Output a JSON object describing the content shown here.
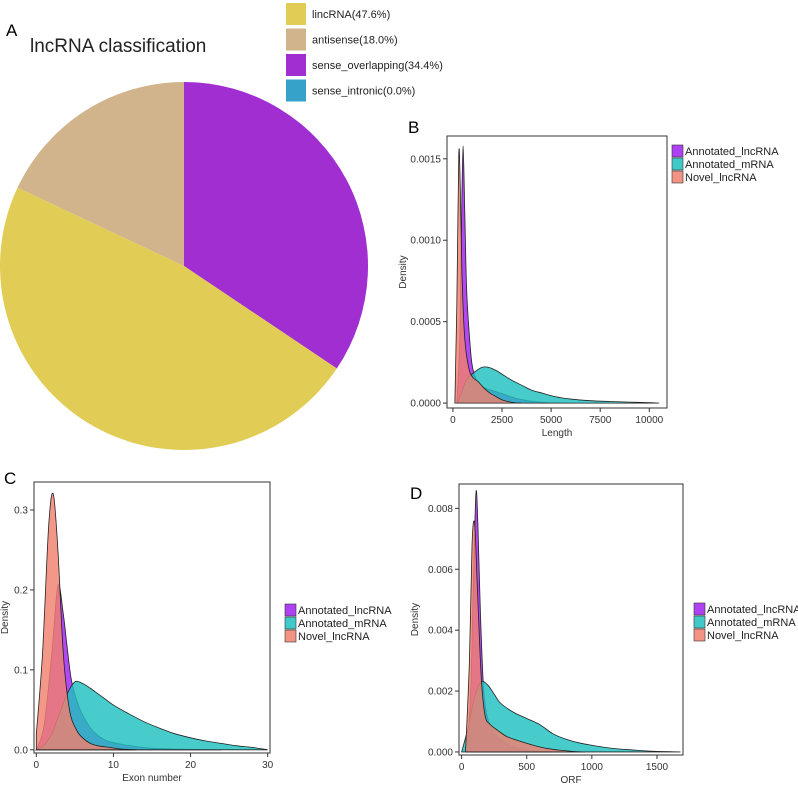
{
  "panels": {
    "a": {
      "letter": "A",
      "chart_data": {
        "type": "pie",
        "title": "lncRNA classification",
        "legend_position": "top-right",
        "slices": [
          {
            "label": "lincRNA(47.6%)",
            "value": 47.6,
            "color": "#e1cd56"
          },
          {
            "label": "antisense(18.0%)",
            "value": 18.0,
            "color": "#d2b48c"
          },
          {
            "label": "sense_overlapping(34.4%)",
            "value": 34.4,
            "color": "#a02ed0"
          },
          {
            "label": "sense_intronic(0.0%)",
            "value": 0.0,
            "color": "#36a2c9"
          }
        ]
      }
    },
    "b": {
      "letter": "B",
      "chart_data": {
        "type": "area",
        "xlabel": "Length",
        "ylabel": "Density",
        "xlim": [
          -300,
          10900
        ],
        "ylim": [
          -3e-05,
          0.00164
        ],
        "xticks": [
          {
            "value": 0,
            "label": "0"
          },
          {
            "value": 2500,
            "label": "2500"
          },
          {
            "value": 5000,
            "label": "5000"
          },
          {
            "value": 7500,
            "label": "7500"
          },
          {
            "value": 10000,
            "label": "10000"
          }
        ],
        "yticks": [
          {
            "value": 0,
            "label": "0.0000"
          },
          {
            "value": 0.0005,
            "label": "0.0005"
          },
          {
            "value": 0.001,
            "label": "0.0010"
          },
          {
            "value": 0.0015,
            "label": "0.0015"
          }
        ],
        "series": [
          {
            "name": "Annotated_lncRNA",
            "color": "#a020f0",
            "x": [
              200,
              350,
              450,
              520,
              600,
              700,
              850,
              1000,
              1300,
              1700,
              2200,
              2700,
              3200,
              3800,
              4500,
              5300,
              6000
            ],
            "y": [
              0,
              0.0004,
              0.0012,
              0.00158,
              0.0012,
              0.0007,
              0.0004,
              0.00022,
              0.00012,
              9e-05,
              7e-05,
              5e-05,
              3e-05,
              1.5e-05,
              5e-06,
              1e-06,
              0
            ]
          },
          {
            "name": "Annotated_mRNA",
            "color": "#20c0c0",
            "x": [
              200,
              400,
              600,
              800,
              1000,
              1200,
              1500,
              1800,
              2200,
              2600,
              3000,
              3500,
              4000,
              4600,
              5200,
              6000,
              7000,
              8000,
              9000,
              10000,
              10500
            ],
            "y": [
              0,
              5e-05,
              0.00012,
              0.00016,
              0.00018,
              0.0002,
              0.00022,
              0.00022,
              0.0002,
              0.00017,
              0.00014,
              0.00011,
              8e-05,
              6e-05,
              4e-05,
              2.5e-05,
              1.5e-05,
              1e-05,
              6e-06,
              3e-06,
              0
            ]
          },
          {
            "name": "Novel_lncRNA",
            "color": "#f0806f",
            "x": [
              100,
              200,
              300,
              380,
              460,
              600,
              800,
              1000,
              1300,
              1600,
              1900,
              2200,
              2500,
              2800,
              3100,
              3500
            ],
            "y": [
              0,
              0.0006,
              0.00153,
              0.0013,
              0.0008,
              0.0004,
              0.00022,
              0.00016,
              0.00013,
              9e-05,
              6e-05,
              4e-05,
              2e-05,
              1e-05,
              3e-06,
              0
            ]
          }
        ]
      }
    },
    "c": {
      "letter": "C",
      "chart_data": {
        "type": "area",
        "xlabel": "Exon number",
        "ylabel": "Density",
        "xlim": [
          -0.3,
          30.3
        ],
        "ylim": [
          -0.004,
          0.335
        ],
        "xticks": [
          {
            "value": 0,
            "label": "0"
          },
          {
            "value": 10,
            "label": "10"
          },
          {
            "value": 20,
            "label": "20"
          },
          {
            "value": 30,
            "label": "30"
          }
        ],
        "yticks": [
          {
            "value": 0,
            "label": "0.0"
          },
          {
            "value": 0.1,
            "label": "0.1"
          },
          {
            "value": 0.2,
            "label": "0.2"
          },
          {
            "value": 0.3,
            "label": "0.3"
          }
        ],
        "series": [
          {
            "name": "Annotated_lncRNA",
            "color": "#a020f0",
            "x": [
              0,
              1,
              2,
              2.8,
              3.5,
              4.5,
              5.5,
              6.5,
              7.5,
              9,
              11,
              13,
              15,
              18,
              21,
              24
            ],
            "y": [
              0,
              0.03,
              0.12,
              0.205,
              0.17,
              0.09,
              0.055,
              0.035,
              0.022,
              0.012,
              0.007,
              0.004,
              0.002,
              0.001,
              0.0004,
              0
            ]
          },
          {
            "name": "Annotated_mRNA",
            "color": "#20c0c0",
            "x": [
              0,
              1,
              2,
              3,
              4,
              5,
              6,
              7,
              8,
              9,
              10,
              12,
              14,
              16,
              18,
              20,
              22,
              24,
              26,
              28,
              30
            ],
            "y": [
              0,
              0.006,
              0.02,
              0.045,
              0.07,
              0.085,
              0.083,
              0.077,
              0.07,
              0.063,
              0.056,
              0.045,
              0.035,
              0.027,
              0.02,
              0.015,
              0.011,
              0.008,
              0.005,
              0.003,
              0
            ]
          },
          {
            "name": "Novel_lncRNA",
            "color": "#f0806f",
            "x": [
              0,
              0.8,
              1.6,
              2.2,
              2.8,
              3.5,
              4.3,
              5.2,
              6,
              7,
              8,
              9.5,
              11,
              13
            ],
            "y": [
              0.02,
              0.12,
              0.28,
              0.32,
              0.25,
              0.12,
              0.05,
              0.025,
              0.015,
              0.008,
              0.005,
              0.003,
              0.001,
              0
            ]
          }
        ]
      }
    },
    "d": {
      "letter": "D",
      "chart_data": {
        "type": "area",
        "xlabel": "ORF",
        "ylabel": "Density",
        "xlim": [
          -20,
          1700
        ],
        "ylim": [
          -0.0001,
          0.0088
        ],
        "xticks": [
          {
            "value": 0,
            "label": "0"
          },
          {
            "value": 500,
            "label": "500"
          },
          {
            "value": 1000,
            "label": "1000"
          },
          {
            "value": 1500,
            "label": "1500"
          }
        ],
        "yticks": [
          {
            "value": 0,
            "label": "0.000"
          },
          {
            "value": 0.002,
            "label": "0.002"
          },
          {
            "value": 0.004,
            "label": "0.004"
          },
          {
            "value": 0.006,
            "label": "0.006"
          },
          {
            "value": 0.008,
            "label": "0.008"
          }
        ],
        "series": [
          {
            "name": "Annotated_lncRNA",
            "color": "#a020f0",
            "x": [
              40,
              70,
              90,
              110,
              125,
              145,
              170,
              200,
              240,
              300,
              380,
              480,
              600,
              750
            ],
            "y": [
              0,
              0.002,
              0.0055,
              0.0085,
              0.0075,
              0.0045,
              0.002,
              0.0011,
              0.0007,
              0.0004,
              0.0002,
              8e-05,
              2e-05,
              0
            ]
          },
          {
            "name": "Annotated_mRNA",
            "color": "#20c0c0",
            "x": [
              0,
              50,
              100,
              150,
              200,
              250,
              300,
              400,
              500,
              600,
              700,
              800,
              900,
              1000,
              1100,
              1200,
              1300,
              1400,
              1500,
              1600,
              1680
            ],
            "y": [
              0,
              0.0008,
              0.0018,
              0.0023,
              0.0022,
              0.0019,
              0.0016,
              0.0013,
              0.0011,
              0.0009,
              0.0006,
              0.00042,
              0.0003,
              0.00022,
              0.00015,
              0.0001,
              7e-05,
              4e-05,
              2e-05,
              8e-06,
              0
            ]
          },
          {
            "name": "Novel_lncRNA",
            "color": "#f0806f",
            "x": [
              30,
              60,
              80,
              100,
              120,
              150,
              180,
              220,
              280,
              350,
              450,
              550,
              650,
              750,
              850,
              950
            ],
            "y": [
              0,
              0.003,
              0.0068,
              0.0075,
              0.0055,
              0.0025,
              0.0012,
              0.0009,
              0.0007,
              0.0005,
              0.00035,
              0.00022,
              0.00012,
              6e-05,
              2e-05,
              0
            ]
          }
        ]
      }
    }
  }
}
